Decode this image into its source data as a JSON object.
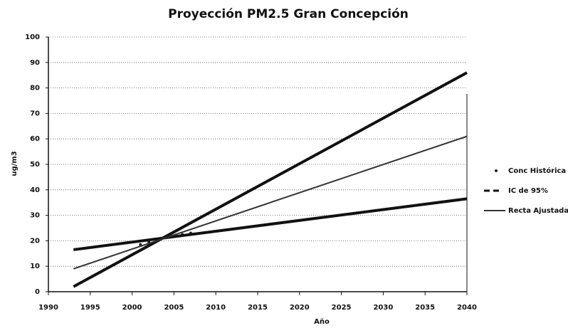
{
  "chart_data": {
    "type": "line",
    "title": "Proyección PM2.5 Gran Concepción",
    "x_label": "Año",
    "y_label": "ug/m3",
    "xlim": [
      1990,
      2040
    ],
    "xticks": [
      1990,
      1995,
      2000,
      2005,
      2010,
      2015,
      2020,
      2025,
      2030,
      2035,
      2040
    ],
    "ylim": [
      0,
      100
    ],
    "yticks": [
      0,
      10,
      20,
      30,
      40,
      50,
      60,
      70,
      80,
      90,
      100
    ],
    "grid": true,
    "legend": "right",
    "series": [
      {
        "name": "Conc Histórica",
        "color": "#222222",
        "style": "marker",
        "x": [
          2001,
          2002,
          2003,
          2004,
          2005,
          2006,
          2007
        ],
        "values": [
          18.5,
          19.5,
          20.5,
          21.5,
          22,
          22.5,
          23
        ]
      },
      {
        "name": "IC de 95%",
        "color": "#111111",
        "style": "thick",
        "x": [
          1993,
          2040
        ],
        "values": [
          2,
          86
        ]
      },
      {
        "color": "#111111",
        "style": "thick",
        "x": [
          1993,
          2040
        ],
        "values": [
          16.5,
          36.5
        ]
      },
      {
        "name": "Recta Ajustada",
        "color": "#333333",
        "style": "thin",
        "x": [
          1993,
          2040
        ],
        "values": [
          9,
          61
        ]
      }
    ]
  }
}
